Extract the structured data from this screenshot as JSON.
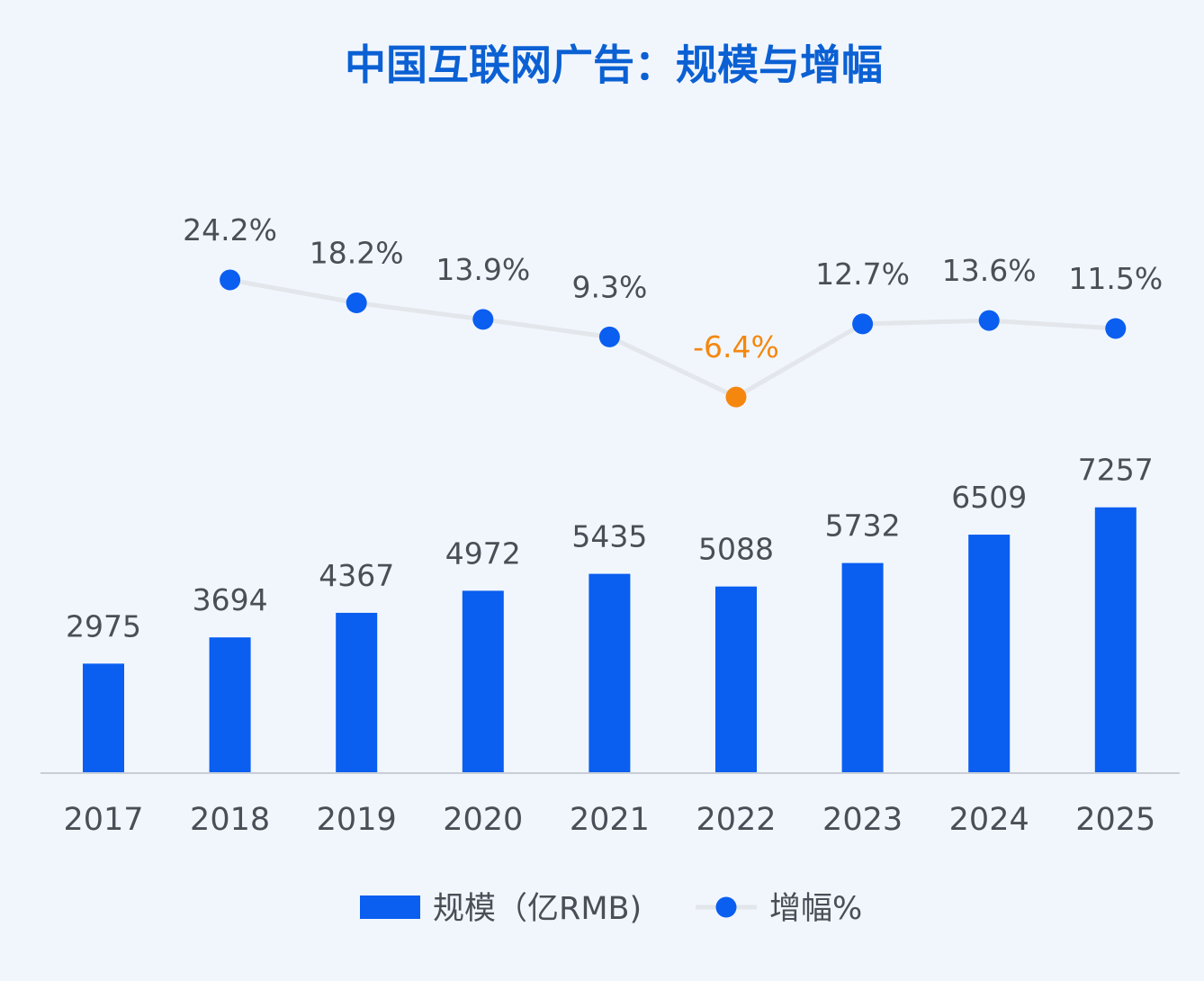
{
  "chart_data": {
    "type": "bar+line",
    "title": "中国互联网广告：规模与增幅",
    "categories": [
      "2017",
      "2018",
      "2019",
      "2020",
      "2021",
      "2022",
      "2023",
      "2024",
      "2025"
    ],
    "series": [
      {
        "name": "规模（亿RMB)",
        "type": "bar",
        "values": [
          2975,
          3694,
          4367,
          4972,
          5435,
          5088,
          5732,
          6509,
          7257
        ],
        "labels": [
          "2975",
          "3694",
          "4367",
          "4972",
          "5435",
          "5088",
          "5732",
          "6509",
          "7257"
        ],
        "color": "#0a5ef0"
      },
      {
        "name": "增幅%",
        "type": "line",
        "x": [
          "2018",
          "2019",
          "2020",
          "2021",
          "2022",
          "2023",
          "2024",
          "2025"
        ],
        "values": [
          24.2,
          18.2,
          13.9,
          9.3,
          -6.4,
          12.7,
          13.6,
          11.5
        ],
        "labels": [
          "24.2%",
          "18.2%",
          "13.9%",
          "9.3%",
          "-6.4%",
          "12.7%",
          "13.6%",
          "11.5%"
        ],
        "color": "#0a5ef0",
        "negative_color": "#f5870f"
      }
    ],
    "legend_position": "bottom",
    "grid": false
  },
  "colors": {
    "title": "#0b60d3",
    "text": "#4a4f57",
    "axis": "#c9ced6",
    "line": "#e3e6ea",
    "background": "#f1f6fd"
  }
}
